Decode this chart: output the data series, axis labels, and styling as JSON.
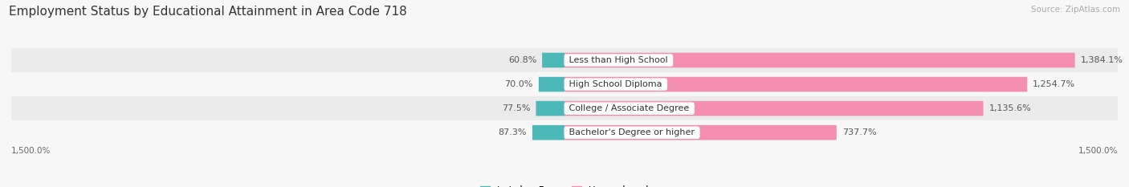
{
  "title": "Employment Status by Educational Attainment in Area Code 718",
  "source": "Source: ZipAtlas.com",
  "categories": [
    "Less than High School",
    "High School Diploma",
    "College / Associate Degree",
    "Bachelor's Degree or higher"
  ],
  "labor_force_pct": [
    60.8,
    70.0,
    77.5,
    87.3
  ],
  "unemployed_values": [
    1384.1,
    1254.7,
    1135.6,
    737.7
  ],
  "labor_force_color": "#4db8b8",
  "unemployed_color": "#f48fb1",
  "background_color": "#f7f7f7",
  "row_bg_color": "#ebebeb",
  "row_bg_alt_color": "#f7f7f7",
  "xlim": [
    -1500,
    1500
  ],
  "bar_height": 0.62,
  "title_fontsize": 11,
  "label_fontsize": 8,
  "value_fontsize": 8
}
